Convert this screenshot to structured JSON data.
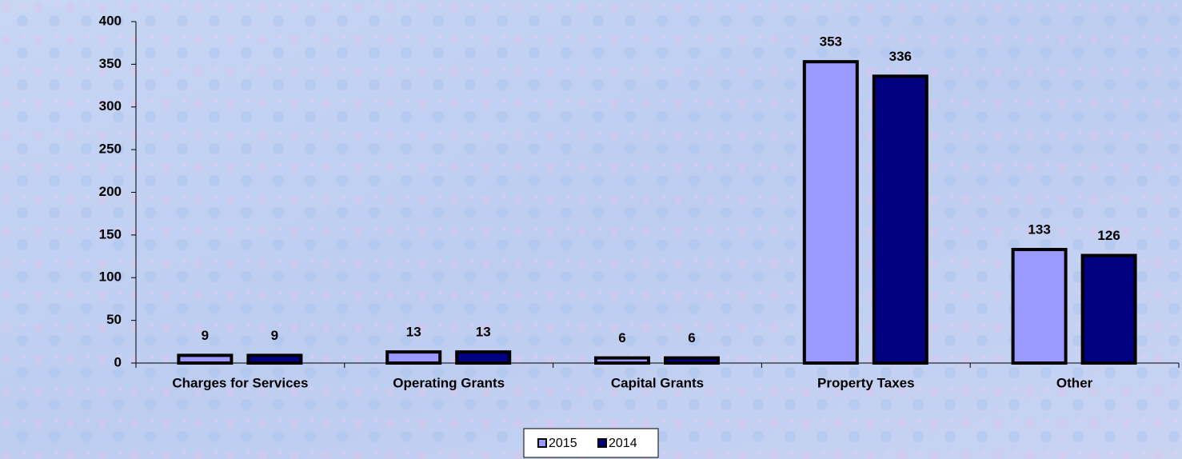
{
  "chart_data": {
    "type": "bar",
    "categories": [
      "Charges for Services",
      "Operating Grants",
      "Capital Grants",
      "Property Taxes",
      "Other"
    ],
    "series": [
      {
        "name": "2015",
        "color": "#9999ff",
        "values": [
          9,
          13,
          6,
          353,
          133
        ]
      },
      {
        "name": "2014",
        "color": "#000080",
        "values": [
          9,
          13,
          6,
          336,
          126
        ]
      }
    ],
    "ylim": [
      0,
      400
    ],
    "yticks": [
      0,
      50,
      100,
      150,
      200,
      250,
      300,
      350,
      400
    ],
    "grid": false,
    "legend": "bottom"
  }
}
